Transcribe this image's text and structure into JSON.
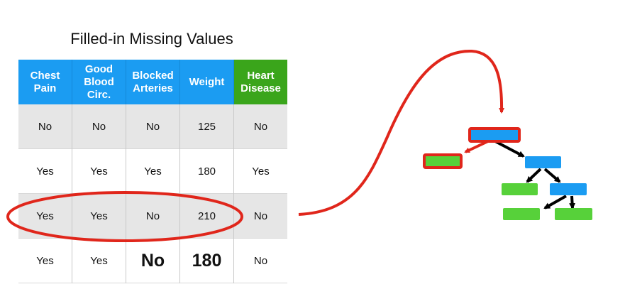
{
  "title": "Filled-in Missing Values",
  "table": {
    "headers": [
      {
        "label": "Chest\nPain"
      },
      {
        "label": "Good\nBlood\nCirc."
      },
      {
        "label": "Blocked\nArteries"
      },
      {
        "label": "Weight"
      },
      {
        "label": "Heart\nDisease"
      }
    ],
    "rows": [
      [
        "No",
        "No",
        "No",
        "125",
        "No"
      ],
      [
        "Yes",
        "Yes",
        "Yes",
        "180",
        "Yes"
      ],
      [
        "Yes",
        "Yes",
        "No",
        "210",
        "No"
      ],
      [
        "Yes",
        "Yes",
        "No",
        "180",
        "No"
      ]
    ]
  },
  "colors": {
    "feature_header": "#1b9cf2",
    "target_header": "#3aa51b",
    "highlight": "#e0261b",
    "node_internal": "#1b9cf2",
    "node_leaf": "#57d13a",
    "shaded_row": "#e6e6e6"
  }
}
